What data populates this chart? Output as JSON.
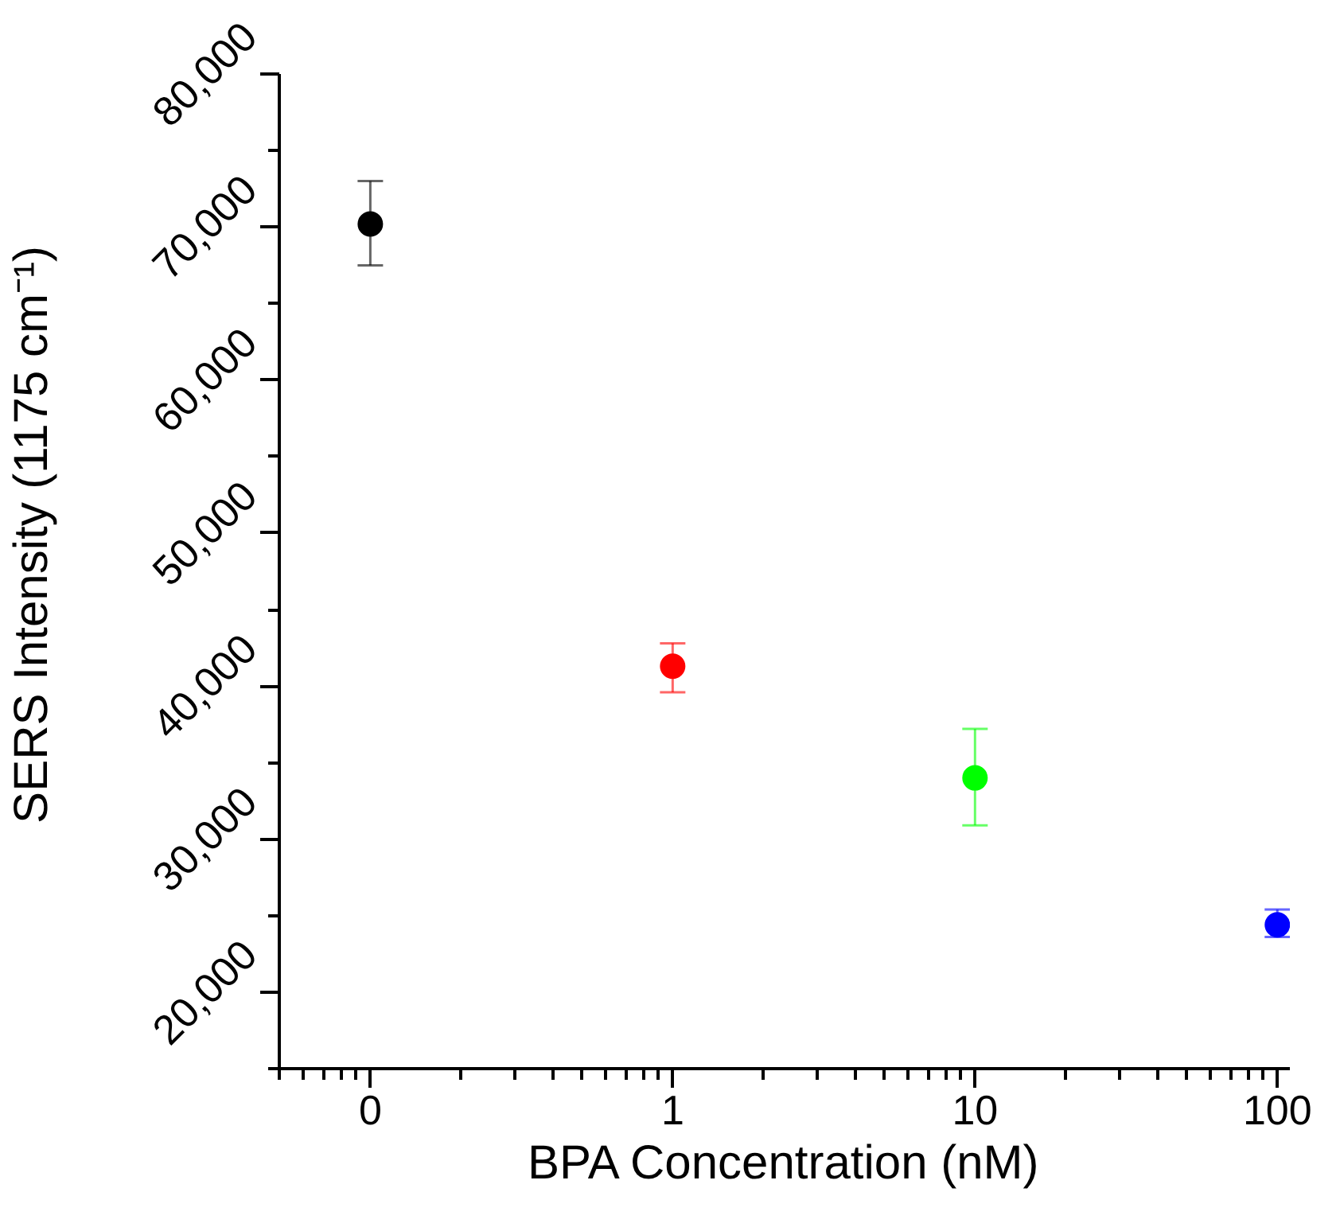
{
  "chart_data": {
    "type": "scatter",
    "xlabel": "BPA Concentration (nM)",
    "ylabel": "SERS Intensity (1175 cm⁻¹)",
    "x": [
      0.1,
      1,
      10,
      100
    ],
    "values": [
      70200,
      41300,
      34000,
      24400
    ],
    "errors": [
      [
        67500,
        73000
      ],
      [
        39600,
        42800
      ],
      [
        30900,
        37200
      ],
      [
        23600,
        25400
      ]
    ],
    "colors": [
      "#000000",
      "#ff0000",
      "#00ff00",
      "#0000ff"
    ],
    "marker": "circle",
    "log": "x",
    "xlim": [
      0.05,
      110
    ],
    "xticks": [
      {
        "value": 0.1,
        "label": "0"
      },
      1,
      10,
      100
    ],
    "ylim": [
      15000,
      80000
    ],
    "yticks": [
      {
        "value": 20000,
        "label": "20,000"
      },
      {
        "value": 30000,
        "label": "30,000"
      },
      {
        "value": 40000,
        "label": "40,000"
      },
      {
        "value": 50000,
        "label": "50,000"
      },
      {
        "value": 60000,
        "label": "60,000"
      },
      {
        "value": 70000,
        "label": "70,000"
      },
      {
        "value": 80000,
        "label": "80,000"
      }
    ]
  }
}
